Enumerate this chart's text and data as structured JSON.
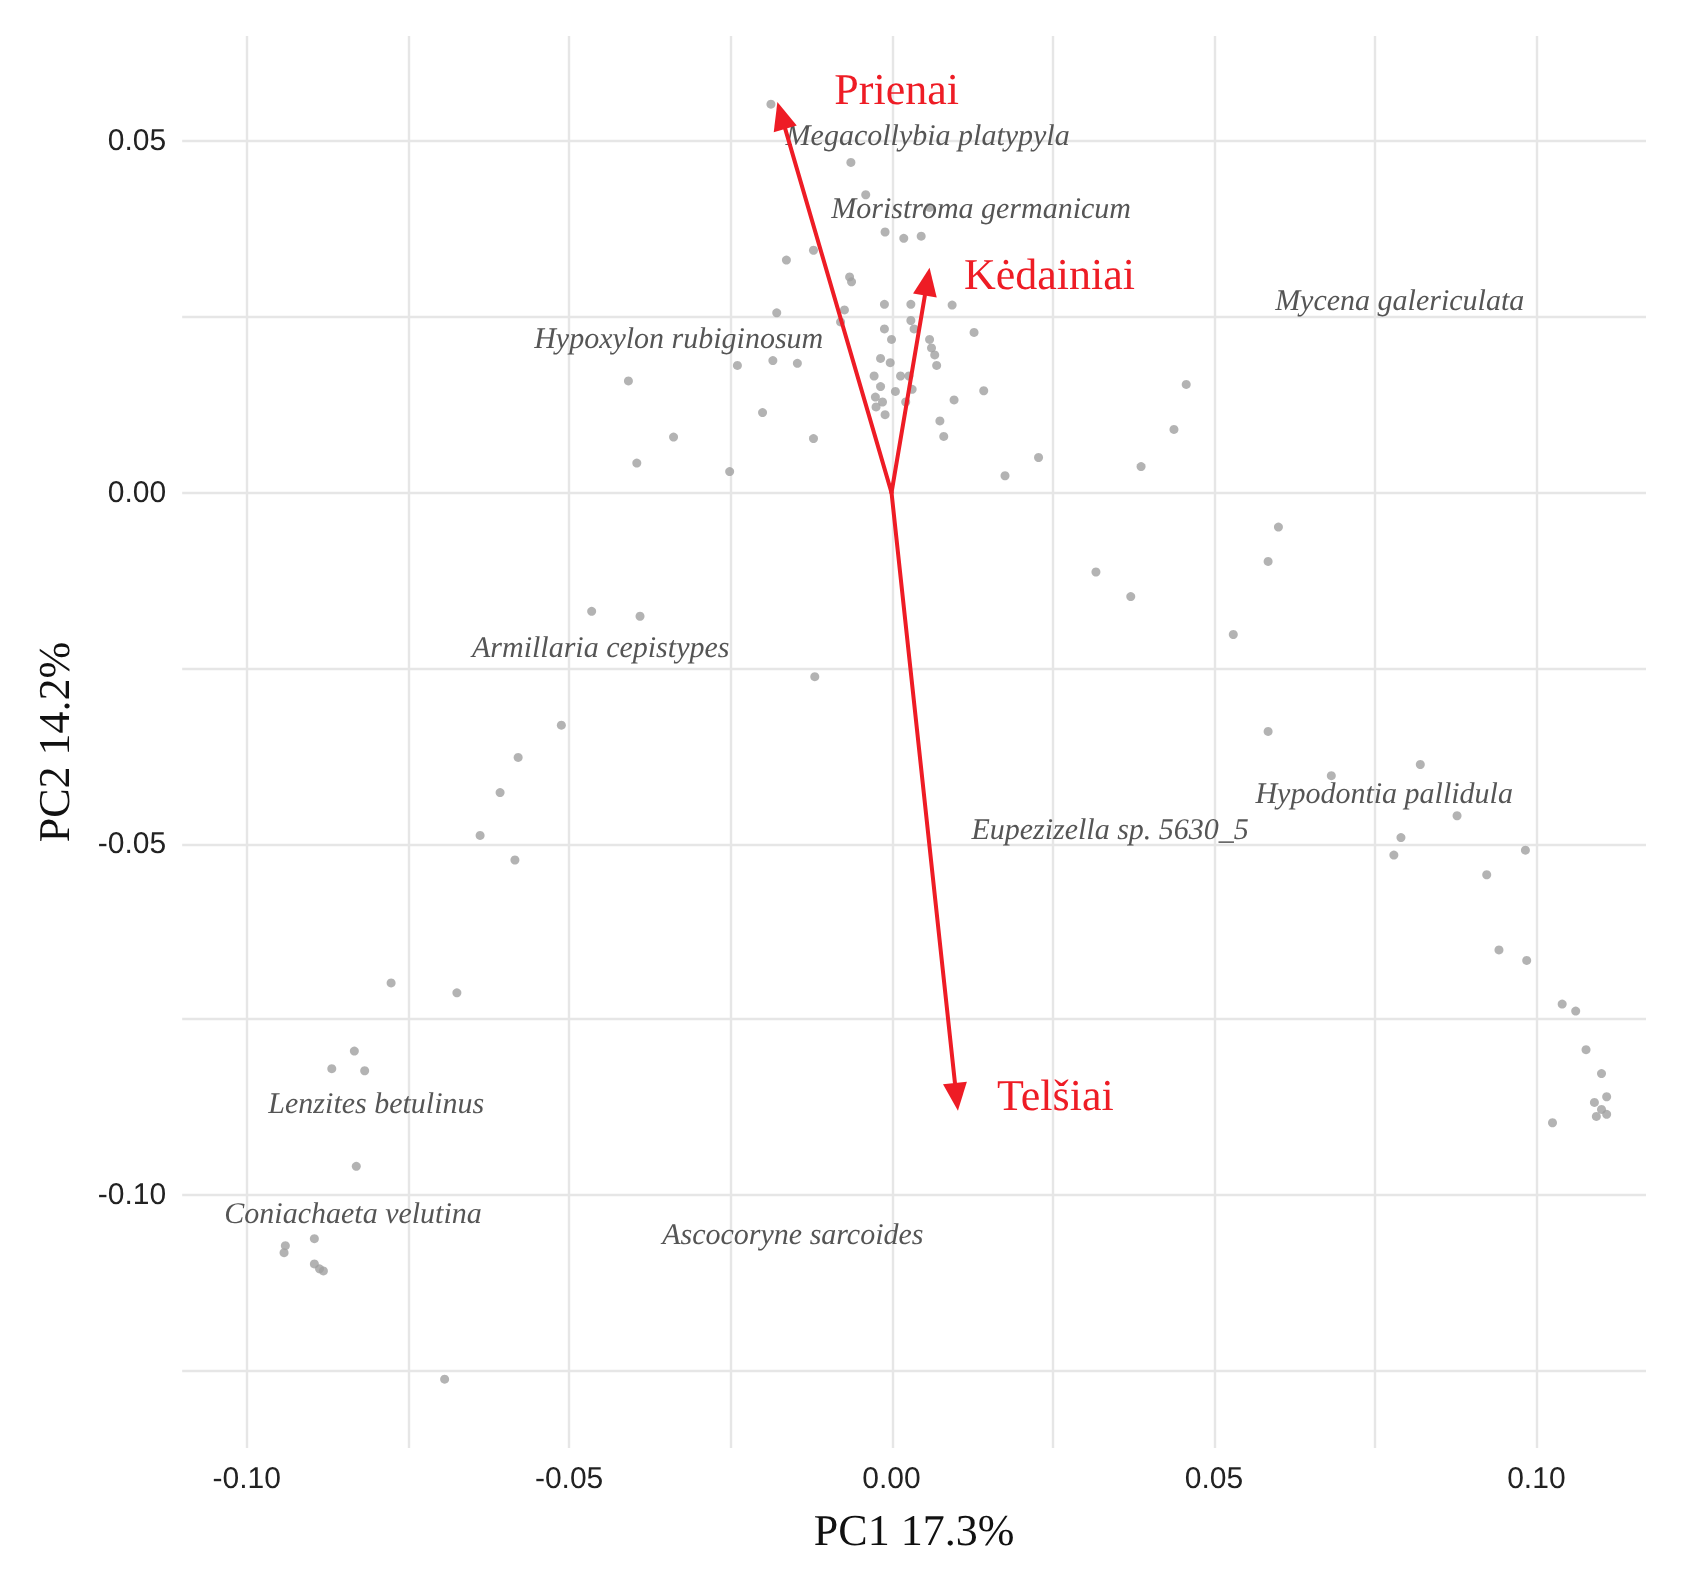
{
  "chart_data": {
    "type": "scatter",
    "xlabel": "PC1 17.3%",
    "ylabel": "PC2 14.2%",
    "xlim": [
      -0.11,
      0.117
    ],
    "ylim": [
      -0.136,
      0.065
    ],
    "xticks": [
      {
        "value": -0.1,
        "label": "-0.10"
      },
      {
        "value": -0.075,
        "label": null
      },
      {
        "value": -0.05,
        "label": "-0.05"
      },
      {
        "value": -0.025,
        "label": null
      },
      {
        "value": 0,
        "label": "0.00"
      },
      {
        "value": 0.025,
        "label": null
      },
      {
        "value": 0.05,
        "label": "0.05"
      },
      {
        "value": 0.075,
        "label": null
      },
      {
        "value": 0.1,
        "label": "0.10"
      }
    ],
    "yticks": [
      {
        "value": -0.125,
        "label": null
      },
      {
        "value": -0.1,
        "label": "-0.10"
      },
      {
        "value": -0.075,
        "label": null
      },
      {
        "value": -0.05,
        "label": "-0.05"
      },
      {
        "value": -0.025,
        "label": null
      },
      {
        "value": 0,
        "label": "0.00"
      },
      {
        "value": 0.025,
        "label": null
      },
      {
        "value": 0.05,
        "label": "0.05"
      }
    ],
    "grid": true,
    "series": [
      {
        "color": "#a0a0a0",
        "x": [
          -0.0187,
          -0.0063,
          -0.004,
          0.0059,
          -0.001,
          0.0019,
          0.0046,
          -0.0163,
          -0.0121,
          -0.0065,
          -0.0062,
          -0.0011,
          0.003,
          0.0094,
          -0.0178,
          -0.0073,
          -0.0079,
          0.0128,
          -0.0011,
          0,
          0.0059,
          0.0062,
          0.007,
          0.0067,
          -0.0408,
          -0.0239,
          -0.0184,
          -0.0146,
          -0.0017,
          -0.0002,
          -0.0027,
          -0.0017,
          -0.0025,
          -0.0014,
          -0.0024,
          -0.001,
          0.0006,
          0.0014,
          0.0027,
          0.0032,
          0.0022,
          0.003,
          0.0035,
          0.0143,
          0.0097,
          0.0075,
          0.0081,
          -0.02,
          -0.0121,
          -0.0338,
          -0.0395,
          -0.0251,
          0.0176,
          0.0228,
          0.0387,
          0.0438,
          0.0457,
          0.06,
          0.0584,
          0.0317,
          0.0371,
          0.053,
          0.0584,
          -0.0465,
          -0.039,
          -0.0119,
          -0.0512,
          -0.0579,
          -0.0607,
          -0.0638,
          -0.0584,
          -0.0776,
          -0.0674,
          -0.0833,
          -0.0868,
          -0.0817,
          -0.083,
          -0.0895,
          -0.094,
          -0.0942,
          -0.0895,
          -0.0887,
          -0.0881,
          -0.0693,
          0.0682,
          0.082,
          0.0877,
          0.079,
          0.0779,
          0.0983,
          0.0923,
          0.0942,
          0.0985,
          0.104,
          0.1061,
          0.1077,
          0.1101,
          0.1109,
          0.109,
          0.1101,
          0.1109,
          0.1093,
          0.1025
        ],
        "values": [
          0.0553,
          0.047,
          0.0424,
          0.0406,
          0.0371,
          0.0362,
          0.0365,
          0.0331,
          0.0345,
          0.0307,
          0.03,
          0.0268,
          0.0268,
          0.0267,
          0.0256,
          0.026,
          0.0243,
          0.0228,
          0.0233,
          0.0218,
          0.0218,
          0.0206,
          0.0181,
          0.0196,
          0.0159,
          0.0181,
          0.0188,
          0.0184,
          0.0191,
          0.0185,
          0.0166,
          0.0151,
          0.0136,
          0.0129,
          0.0122,
          0.0111,
          0.0144,
          0.0166,
          0.0166,
          0.0147,
          0.0129,
          0.0245,
          0.0233,
          0.0145,
          0.0132,
          0.0102,
          0.008,
          0.0114,
          0.0077,
          0.0079,
          0.0042,
          0.003,
          0.0024,
          0.005,
          0.0037,
          0.009,
          0.0154,
          -0.0049,
          -0.0098,
          -0.0113,
          -0.0148,
          -0.0202,
          -0.034,
          -0.0169,
          -0.0176,
          -0.0262,
          -0.0331,
          -0.0377,
          -0.0427,
          -0.0488,
          -0.0523,
          -0.0698,
          -0.0712,
          -0.0795,
          -0.082,
          -0.0823,
          -0.0959,
          -0.1062,
          -0.1072,
          -0.1082,
          -0.1098,
          -0.1105,
          -0.1108,
          -0.1262,
          -0.0403,
          -0.0387,
          -0.046,
          -0.0491,
          -0.0516,
          -0.0509,
          -0.0544,
          -0.0651,
          -0.0666,
          -0.0728,
          -0.0738,
          -0.0793,
          -0.0827,
          -0.086,
          -0.0868,
          -0.0878,
          -0.0885,
          -0.0888,
          -0.0897
        ]
      }
    ],
    "annotations": [
      "Megacollybia platypyla",
      "Moristroma germanicum",
      "Mycena galericulata",
      "Hypoxylon rubiginosum",
      "Armillaria cepistypes",
      "Hypodontia pallidula",
      "Eupezizella sp. 5630_5",
      "Lenzites betulinus",
      "Coniachaeta velutina",
      "Ascocoryne sarcoides",
      "Prienai",
      "Kėdainiai",
      "Telšiai"
    ]
  }
}
